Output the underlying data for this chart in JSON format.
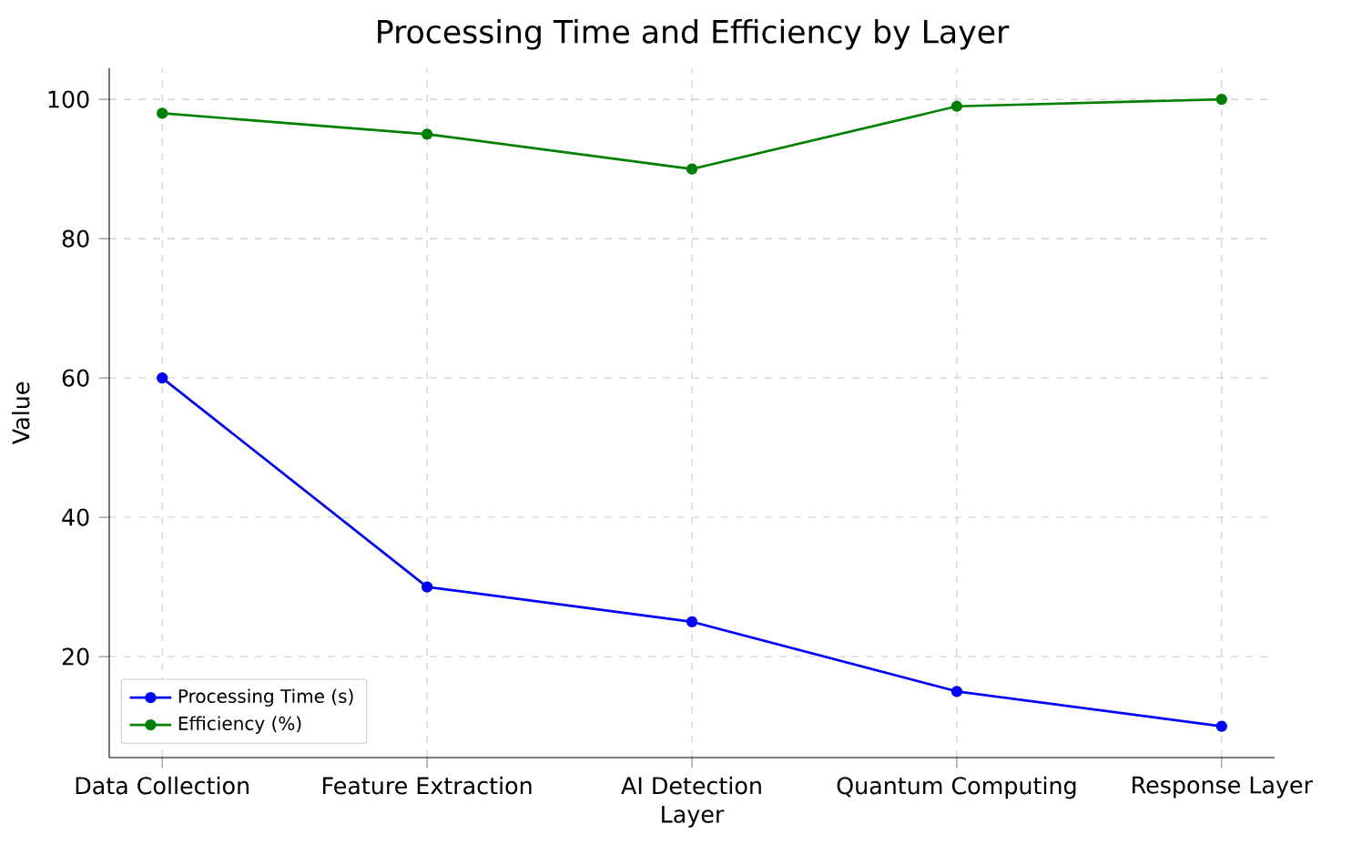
{
  "chart_data": {
    "type": "line",
    "title": "Processing Time and Efficiency by Layer",
    "xlabel": "Layer",
    "ylabel": "Value",
    "categories": [
      "Data Collection",
      "Feature Extraction",
      "AI Detection",
      "Quantum Computing",
      "Response Layer"
    ],
    "series": [
      {
        "name": "Processing Time (s)",
        "color": "#0000ff",
        "values": [
          60,
          30,
          25,
          15,
          10
        ]
      },
      {
        "name": "Efficiency (%)",
        "color": "#008000",
        "values": [
          98,
          95,
          90,
          99,
          100
        ]
      }
    ],
    "ylim": [
      5.5,
      104.5
    ],
    "yticks": [
      20,
      40,
      60,
      80,
      100
    ],
    "grid": true,
    "legend": "bottom left",
    "marker": "circle",
    "line_style": "solid"
  }
}
